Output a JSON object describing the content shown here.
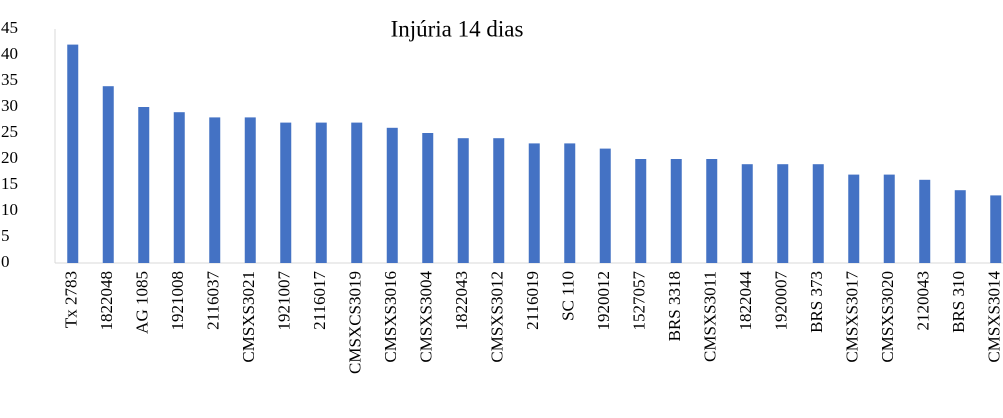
{
  "chart_data": {
    "type": "bar",
    "title": "Injúria 14 dias",
    "categories": [
      "Tx 2783",
      "1822048",
      "AG 1085",
      "1921008",
      "2116037",
      "CMSXS3021",
      "1921007",
      "2116017",
      "CMSXCS3019",
      "CMSXS3016",
      "CMSXS3004",
      "1822043",
      "CMSXS3012",
      "2116019",
      "SC 110",
      "1920012",
      "1527057",
      "BRS 3318",
      "CMSXS3011",
      "1822044",
      "1920007",
      "BRS 373",
      "CMSXS3017",
      "CMSXS3020",
      "2120043",
      "BRS 310",
      "CMSXS3014"
    ],
    "values": [
      42,
      34,
      30,
      29,
      28,
      28,
      27,
      27,
      27,
      26,
      25,
      24,
      24,
      23,
      23,
      22,
      20,
      20,
      20,
      19,
      19,
      19,
      17,
      17,
      16,
      14,
      13
    ],
    "color": "#4472c4",
    "ylim": [
      0,
      45
    ],
    "yticks": [
      0,
      5,
      10,
      15,
      20,
      25,
      30,
      35,
      40,
      45
    ],
    "grid": false
  }
}
